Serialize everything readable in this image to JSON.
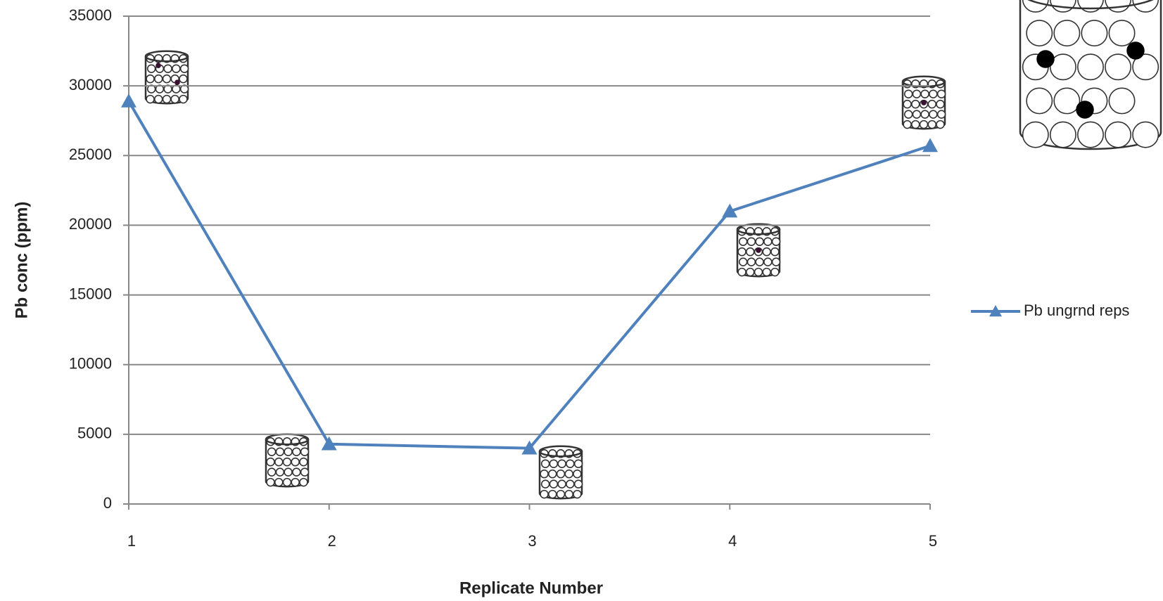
{
  "chart_data": {
    "type": "line",
    "x_label": "Replicate Number",
    "y_label": "Pb conc (ppm)",
    "x": [
      1,
      2,
      3,
      4,
      5
    ],
    "xlim": [
      1,
      5
    ],
    "xticks": [
      1,
      2,
      3,
      4,
      5
    ],
    "ylim": [
      0,
      35000
    ],
    "yticks": [
      0,
      5000,
      10000,
      15000,
      20000,
      25000,
      30000,
      35000
    ],
    "grid": true,
    "legend": "right",
    "series": [
      {
        "name": "Pb ungrnd reps",
        "color": "#4f81bd",
        "values": [
          28900,
          4300,
          4000,
          21000,
          25700
        ]
      }
    ]
  }
}
